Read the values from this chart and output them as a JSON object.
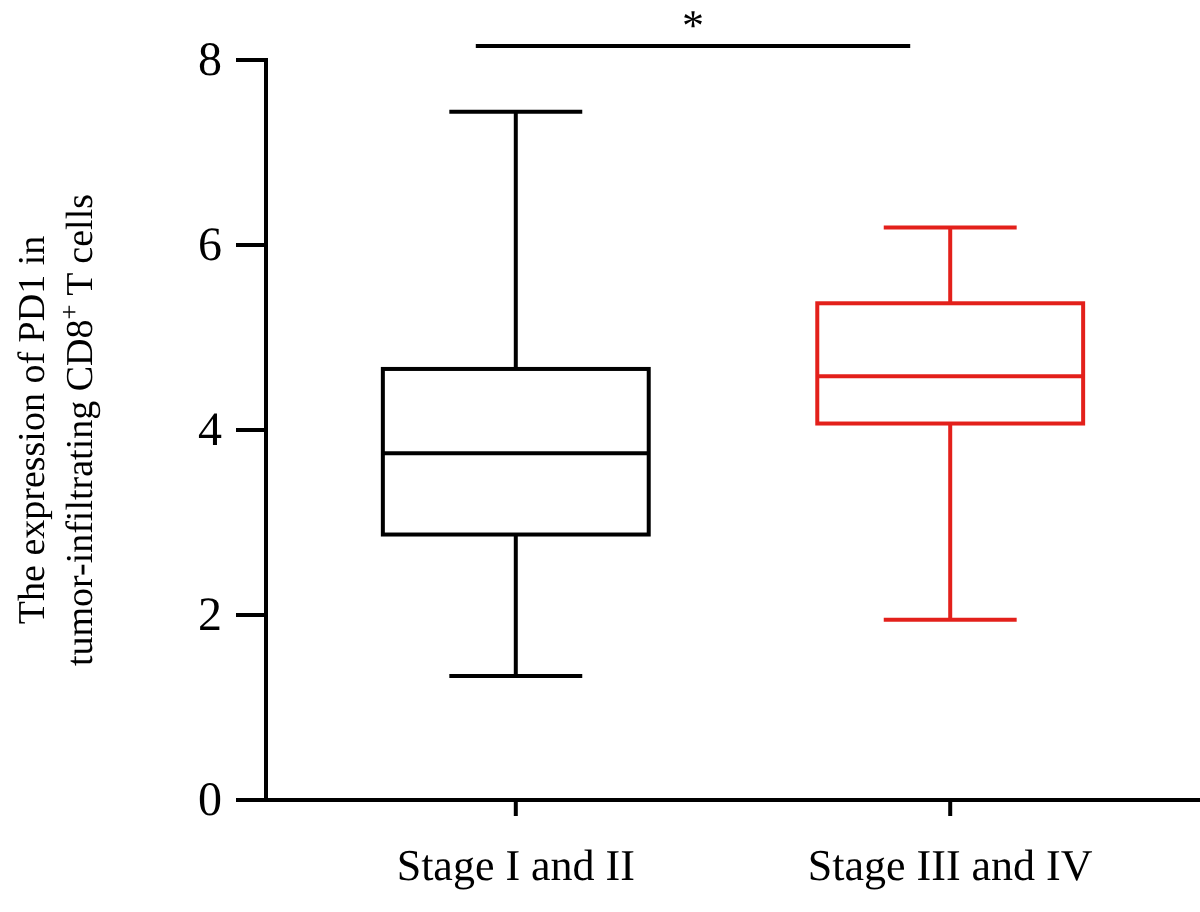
{
  "chart_data": {
    "type": "box",
    "ylabel": "The expression of PD1 in\ntumor-infiltrating CD8$^{+}$ T cells",
    "categories": [
      "Stage I and II",
      "Stage III and IV"
    ],
    "boxes": [
      {
        "low": 1.34,
        "q1": 2.87,
        "median": 3.75,
        "q3": 4.66,
        "high": 7.44
      },
      {
        "low": 1.95,
        "q1": 4.07,
        "median": 4.58,
        "q3": 5.37,
        "high": 6.19
      }
    ],
    "colors": [
      "#000000",
      "#e3201b"
    ],
    "ylim": [
      0,
      8
    ],
    "yticks": [
      0,
      2,
      4,
      6,
      8
    ],
    "annotations": [
      "*"
    ]
  }
}
